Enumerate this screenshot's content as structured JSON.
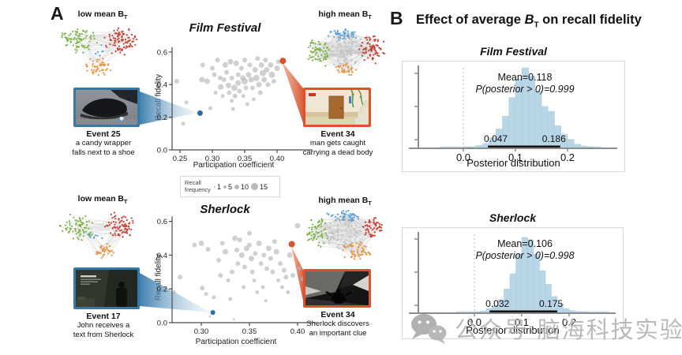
{
  "panelA": {
    "label": "A",
    "film_festival": {
      "title": "Film Festival",
      "low_label": {
        "text": "low mean B",
        "sub": "T"
      },
      "high_label": {
        "text": "high mean B",
        "sub": "T"
      },
      "low_event": {
        "title": "Event 25",
        "line1": "a candy wrapper",
        "line2": "falls next to a shoe"
      },
      "high_event": {
        "title": "Event 34",
        "line1": "man gets caught",
        "line2": "carrying a dead body"
      }
    },
    "sherlock": {
      "title": "Sherlock",
      "low_label": {
        "text": "low mean B",
        "sub": "T"
      },
      "high_label": {
        "text": "high mean B",
        "sub": "T"
      },
      "low_event": {
        "title": "Event 17",
        "line1": "John receives a",
        "line2": "text from Sherlock"
      },
      "high_event": {
        "title": "Event 34",
        "line1": "Sherlock discovers",
        "line2": "an important clue"
      }
    },
    "legend": {
      "title_line1": "Recall",
      "title_line2": "frequency",
      "items": [
        {
          "label": "1"
        },
        {
          "label": "5"
        },
        {
          "label": "10"
        },
        {
          "label": "15"
        }
      ]
    }
  },
  "panelB": {
    "label": "B",
    "title": {
      "prefix": "Effect of average ",
      "b": "B",
      "sub": "T",
      "suffix": " on recall fidelity"
    }
  },
  "watermark": {
    "text": "公众号·脑海科技实验室"
  },
  "colors": {
    "accent_blue": "#2e6da4",
    "accent_red": "#d9512b",
    "hist_fill": "#b9d6e6",
    "dot_gray": "#b3b3b3",
    "net_green": "#7cb342",
    "net_red": "#c94034",
    "net_orange": "#e9953f",
    "net_blue": "#5b9fd4"
  },
  "chart_data": [
    {
      "id": "ff_scatter",
      "type": "scatter",
      "title": "Film Festival",
      "xlabel": "Participation coefficient",
      "ylabel": "Recall fidelity",
      "xlim": [
        0.2375,
        0.4525
      ],
      "ylim": [
        0,
        0.63
      ],
      "xticks": [
        0.25,
        0.3,
        0.35,
        0.4
      ],
      "xtick_labels": [
        "0.25",
        "0.30",
        "0.35",
        "0.40"
      ],
      "yticks": [
        0,
        0.2,
        0.4,
        0.6
      ],
      "ytick_labels": [
        "0.0",
        "0.2",
        "0.4",
        "0.6"
      ],
      "size_legend": {
        "title": "Recall frequency",
        "sizes": [
          1,
          5,
          10,
          15
        ]
      },
      "points": [
        [
          0.245,
          0.42,
          3
        ],
        [
          0.255,
          0.16,
          2.5
        ],
        [
          0.26,
          0.29,
          2.5
        ],
        [
          0.285,
          0.52,
          3
        ],
        [
          0.284,
          0.43,
          3.5
        ],
        [
          0.292,
          0.42,
          3.5
        ],
        [
          0.297,
          0.255,
          2.5
        ],
        [
          0.3,
          0.5,
          3
        ],
        [
          0.303,
          0.46,
          3
        ],
        [
          0.305,
          0.35,
          2.5
        ],
        [
          0.308,
          0.55,
          3
        ],
        [
          0.312,
          0.44,
          3
        ],
        [
          0.313,
          0.385,
          3.5
        ],
        [
          0.316,
          0.33,
          2.5
        ],
        [
          0.318,
          0.43,
          3
        ],
        [
          0.32,
          0.52,
          3.5
        ],
        [
          0.322,
          0.475,
          3
        ],
        [
          0.325,
          0.395,
          3.5
        ],
        [
          0.326,
          0.35,
          3
        ],
        [
          0.328,
          0.54,
          3.5
        ],
        [
          0.33,
          0.44,
          3
        ],
        [
          0.33,
          0.3,
          2.5
        ],
        [
          0.332,
          0.25,
          2.5
        ],
        [
          0.334,
          0.38,
          4
        ],
        [
          0.335,
          0.33,
          3
        ],
        [
          0.337,
          0.53,
          3.5
        ],
        [
          0.34,
          0.46,
          3
        ],
        [
          0.34,
          0.41,
          3.5
        ],
        [
          0.342,
          0.36,
          3
        ],
        [
          0.345,
          0.5,
          3
        ],
        [
          0.347,
          0.44,
          3.5
        ],
        [
          0.348,
          0.33,
          2.5
        ],
        [
          0.35,
          0.55,
          3
        ],
        [
          0.35,
          0.42,
          4
        ],
        [
          0.352,
          0.38,
          3
        ],
        [
          0.354,
          0.28,
          2.5
        ],
        [
          0.356,
          0.46,
          3.5
        ],
        [
          0.358,
          0.52,
          3
        ],
        [
          0.36,
          0.43,
          3.5
        ],
        [
          0.362,
          0.38,
          3
        ],
        [
          0.364,
          0.31,
          2.5
        ],
        [
          0.366,
          0.49,
          3.5
        ],
        [
          0.368,
          0.44,
          4
        ],
        [
          0.37,
          0.56,
          3
        ],
        [
          0.372,
          0.4,
          3.5
        ],
        [
          0.374,
          0.35,
          3
        ],
        [
          0.376,
          0.52,
          3.5
        ],
        [
          0.378,
          0.47,
          4
        ],
        [
          0.38,
          0.43,
          3.5
        ],
        [
          0.382,
          0.55,
          3
        ],
        [
          0.384,
          0.49,
          3.5
        ],
        [
          0.386,
          0.4,
          3
        ],
        [
          0.39,
          0.52,
          3.5
        ],
        [
          0.392,
          0.46,
          4
        ],
        [
          0.395,
          0.42,
          3
        ],
        [
          0.4,
          0.5,
          3.5
        ],
        [
          0.402,
          0.54,
          3
        ]
      ],
      "highlight_low": {
        "x": 0.281,
        "y": 0.225,
        "r": 3.5,
        "event": "Event 25"
      },
      "highlight_high": {
        "x": 0.409,
        "y": 0.545,
        "r": 4,
        "event": "Event 34"
      }
    },
    {
      "id": "sh_scatter",
      "type": "scatter",
      "title": "Sherlock",
      "xlabel": "Participation coefficient",
      "ylabel": "Recall fidelity",
      "xlim": [
        0.2697,
        0.413
      ],
      "ylim": [
        0,
        0.63
      ],
      "xticks": [
        0.3,
        0.35,
        0.4
      ],
      "xtick_labels": [
        "0.30",
        "0.35",
        "0.40"
      ],
      "yticks": [
        0,
        0.2,
        0.4,
        0.6
      ],
      "ytick_labels": [
        "0.0",
        "0.2",
        "0.4",
        "0.6"
      ],
      "size_legend": {
        "title": "Recall frequency",
        "sizes": [
          1,
          5,
          10,
          15
        ]
      },
      "points": [
        [
          0.272,
          0.18,
          2.5
        ],
        [
          0.278,
          0.27,
          3
        ],
        [
          0.293,
          0.46,
          3
        ],
        [
          0.3,
          0.47,
          3.5
        ],
        [
          0.301,
          0.205,
          3
        ],
        [
          0.305,
          0.17,
          2.5
        ],
        [
          0.307,
          0.435,
          3
        ],
        [
          0.309,
          0.037,
          1.5
        ],
        [
          0.313,
          0.15,
          2.5
        ],
        [
          0.318,
          0.37,
          3
        ],
        [
          0.32,
          0.28,
          3
        ],
        [
          0.322,
          0.47,
          3
        ],
        [
          0.325,
          0.42,
          3.5
        ],
        [
          0.328,
          0.25,
          2.5
        ],
        [
          0.33,
          0.14,
          2.5
        ],
        [
          0.332,
          0.3,
          3
        ],
        [
          0.334,
          0.02,
          1.5
        ],
        [
          0.335,
          0.5,
          3.5
        ],
        [
          0.337,
          0.43,
          3
        ],
        [
          0.338,
          0.35,
          3
        ],
        [
          0.34,
          0.49,
          3
        ],
        [
          0.342,
          0.4,
          3.5
        ],
        [
          0.344,
          0.21,
          2.5
        ],
        [
          0.345,
          0.33,
          3
        ],
        [
          0.347,
          0.44,
          3.5
        ],
        [
          0.35,
          0.53,
          3
        ],
        [
          0.35,
          0.46,
          3
        ],
        [
          0.352,
          0.38,
          3.5
        ],
        [
          0.353,
          0.3,
          3
        ],
        [
          0.355,
          0.25,
          2.5
        ],
        [
          0.356,
          0.41,
          3
        ],
        [
          0.358,
          0.18,
          2.5
        ],
        [
          0.36,
          0.47,
          3.5
        ],
        [
          0.362,
          0.35,
          3
        ],
        [
          0.364,
          0.21,
          2.5
        ],
        [
          0.365,
          0.4,
          3
        ],
        [
          0.367,
          0.13,
          2
        ],
        [
          0.368,
          0.32,
          3
        ],
        [
          0.37,
          0.44,
          3.5
        ],
        [
          0.372,
          0.38,
          3
        ],
        [
          0.374,
          0.3,
          3
        ],
        [
          0.376,
          0.48,
          3
        ],
        [
          0.378,
          0.42,
          3.5
        ],
        [
          0.38,
          0.25,
          2.5
        ],
        [
          0.382,
          0.35,
          3
        ],
        [
          0.384,
          0.21,
          2.5
        ],
        [
          0.386,
          0.31,
          3
        ],
        [
          0.388,
          0.27,
          3
        ],
        [
          0.39,
          0.18,
          2.5
        ],
        [
          0.392,
          0.4,
          3.5
        ],
        [
          0.395,
          0.28,
          3
        ],
        [
          0.4,
          0.575,
          3.5
        ],
        [
          0.402,
          0.32,
          3
        ],
        [
          0.405,
          0.26,
          3
        ]
      ],
      "highlight_low": {
        "x": 0.312,
        "y": 0.06,
        "r": 3,
        "event": "Event 17"
      },
      "highlight_high": {
        "x": 0.394,
        "y": 0.465,
        "r": 4,
        "event": "Event 34"
      }
    },
    {
      "id": "ff_posterior",
      "type": "bar",
      "title": "Film Festival",
      "xlabel": "Posterior distribution",
      "mean": 0.118,
      "p_posterior_gt_0": 0.999,
      "mean_label": "Mean=0.118",
      "p_label": "P(posterior > 0)=0.999",
      "ci": [
        0.047,
        0.186
      ],
      "ci_labels": [
        "0.047",
        "0.186"
      ],
      "xticks": [
        0,
        0.1,
        0.2
      ],
      "xtick_labels": [
        "0.0",
        "0.1",
        "0.2"
      ],
      "zero_line": 0,
      "bin_start": 0.0,
      "bin_width": 0.0125,
      "heights": [
        0.015,
        0.02,
        0.035,
        0.06,
        0.13,
        0.24,
        0.4,
        0.63,
        0.86,
        1.0,
        0.9,
        0.71,
        0.52,
        0.46,
        0.28,
        0.17,
        0.11,
        0.05,
        0.03,
        0.02
      ]
    },
    {
      "id": "sh_posterior",
      "type": "bar",
      "title": "Sherlock",
      "xlabel": "Posterior distribution",
      "mean": 0.106,
      "p_posterior_gt_0": 0.998,
      "mean_label": "Mean=0.106",
      "p_label": "P(posterior > 0)=0.998",
      "ci": [
        0.032,
        0.175
      ],
      "ci_labels": [
        "0.032",
        "0.175"
      ],
      "xticks": [
        0,
        0.1,
        0.2
      ],
      "xtick_labels": [
        "0.0",
        "0.1",
        "0.2"
      ],
      "zero_line": 0,
      "bin_start": 0.0,
      "bin_width": 0.0125,
      "heights": [
        0.02,
        0.03,
        0.06,
        0.1,
        0.18,
        0.32,
        0.52,
        0.78,
        1.0,
        0.97,
        0.78,
        0.56,
        0.38,
        0.22,
        0.12,
        0.06,
        0.035,
        0.02,
        0.015
      ]
    }
  ]
}
